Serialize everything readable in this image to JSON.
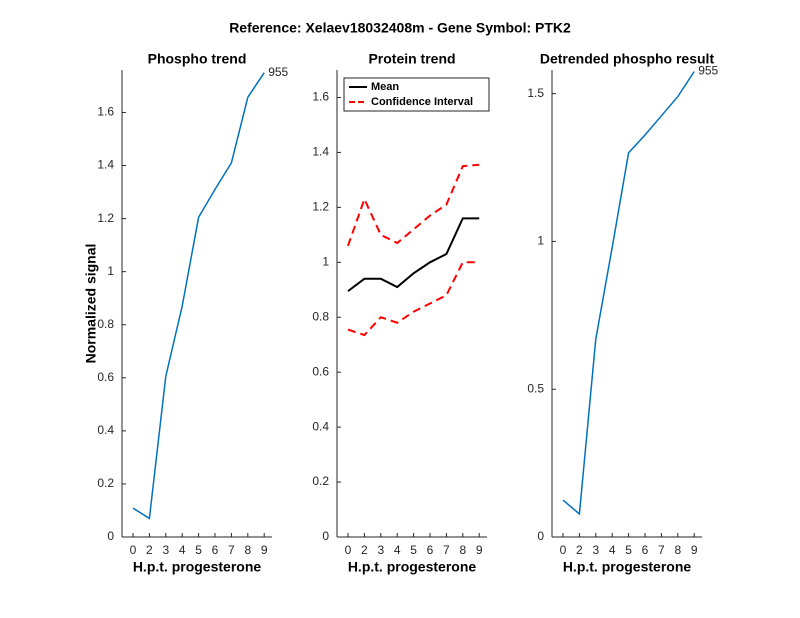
{
  "title": "Reference:  Xelaev18032408m - Gene Symbol:  PTK2",
  "chart_data": [
    {
      "type": "line",
      "title": "Phospho trend",
      "xlabel": "H.p.t. progesterone",
      "ylabel": "Normalized signal",
      "categories": [
        "0",
        "2",
        "3",
        "4",
        "5",
        "6",
        "7",
        "8",
        "9"
      ],
      "series": [
        {
          "name": "955",
          "color": "#0072bd",
          "values": [
            0.109,
            0.07,
            0.606,
            0.87,
            1.205,
            1.31,
            1.41,
            1.657,
            1.75
          ]
        }
      ],
      "annotation": "955",
      "ylim": [
        0,
        1.76
      ],
      "yticks": [
        0,
        0.2,
        0.4,
        0.6,
        0.8,
        1,
        1.2,
        1.4,
        1.6
      ]
    },
    {
      "type": "line",
      "title": "Protein trend",
      "xlabel": "H.p.t. progesterone",
      "categories": [
        "0",
        "2",
        "3",
        "4",
        "5",
        "6",
        "7",
        "8",
        "9"
      ],
      "series": [
        {
          "name": "Mean",
          "color": "#000000",
          "values": [
            0.895,
            0.94,
            0.94,
            0.91,
            0.96,
            1.0,
            1.03,
            1.16,
            1.16
          ]
        },
        {
          "name": "Confidence Interval",
          "color": "#ff0000",
          "dashed": true,
          "values": [
            1.06,
            1.23,
            1.1,
            1.07,
            1.12,
            1.17,
            1.21,
            1.35,
            1.355
          ],
          "lower": [
            0.755,
            0.735,
            0.8,
            0.78,
            0.82,
            0.85,
            0.88,
            1.0,
            1.0
          ]
        }
      ],
      "legend": "upper left",
      "ylim": [
        0,
        1.7
      ],
      "yticks": [
        0,
        0.2,
        0.4,
        0.6,
        0.8,
        1,
        1.2,
        1.4,
        1.6
      ]
    },
    {
      "type": "line",
      "title": "Detrended phospho result",
      "xlabel": "H.p.t. progesterone",
      "categories": [
        "0",
        "2",
        "3",
        "4",
        "5",
        "6",
        "7",
        "8",
        "9"
      ],
      "series": [
        {
          "name": "955",
          "color": "#0072bd",
          "values": [
            0.125,
            0.078,
            0.67,
            0.98,
            1.3,
            1.36,
            1.425,
            1.49,
            1.575
          ]
        }
      ],
      "annotation": "955",
      "ylim": [
        0,
        1.58
      ],
      "yticks": [
        0,
        0.5,
        1,
        1.5
      ]
    }
  ]
}
